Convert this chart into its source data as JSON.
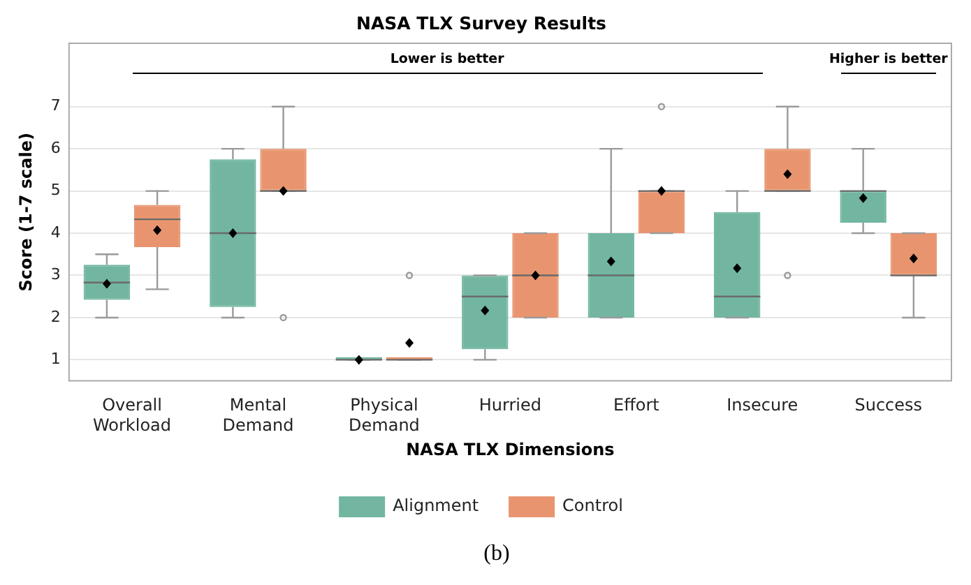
{
  "chart_data": {
    "type": "box",
    "title": "NASA TLX Survey Results",
    "xlabel": "NASA TLX Dimensions",
    "ylabel": "Score (1-7 scale)",
    "categories": [
      "Overall Workload",
      "Mental Demand",
      "Physical Demand",
      "Hurried",
      "Effort",
      "Insecure",
      "Success"
    ],
    "series": [
      {
        "name": "Alignment",
        "color": "#72b6a1",
        "boxes": [
          {
            "low": 2,
            "q1": 2.42,
            "median": 2.83,
            "q3": 3.25,
            "high": 3.5,
            "mean": 2.8
          },
          {
            "low": 2,
            "q1": 2.25,
            "median": 4,
            "q3": 5.75,
            "high": 6,
            "mean": 4
          },
          {
            "low": 1,
            "q1": 1,
            "median": 1,
            "q3": 1,
            "high": 1,
            "mean": 1
          },
          {
            "low": 1,
            "q1": 1.25,
            "median": 2.5,
            "q3": 3,
            "high": 3,
            "mean": 2.17
          },
          {
            "low": 2,
            "q1": 2,
            "median": 3,
            "q3": 4,
            "high": 6,
            "mean": 3.33
          },
          {
            "low": 2,
            "q1": 2,
            "median": 2.5,
            "q3": 4.5,
            "high": 5,
            "mean": 3.17
          },
          {
            "low": 4,
            "q1": 4.25,
            "median": 5,
            "q3": 5,
            "high": 6,
            "mean": 4.83
          }
        ]
      },
      {
        "name": "Control",
        "color": "#e8956f",
        "boxes": [
          {
            "low": 2.67,
            "q1": 3.67,
            "median": 4.33,
            "q3": 4.67,
            "high": 5,
            "mean": 4.07
          },
          {
            "low": 5,
            "q1": 5,
            "median": 5,
            "q3": 6,
            "high": 7,
            "mean": 5,
            "outliers": [
              2
            ]
          },
          {
            "low": 1,
            "q1": 1,
            "median": 1,
            "q3": 1,
            "high": 1,
            "mean": 1.4,
            "outliers": [
              3
            ]
          },
          {
            "low": 2,
            "q1": 2,
            "median": 3,
            "q3": 4,
            "high": 4,
            "mean": 3
          },
          {
            "low": 4,
            "q1": 4,
            "median": 5,
            "q3": 5,
            "high": 5,
            "mean": 5,
            "outliers": [
              7
            ]
          },
          {
            "low": 5,
            "q1": 5,
            "median": 5,
            "q3": 6,
            "high": 7,
            "mean": 5.4,
            "outliers": [
              3
            ]
          },
          {
            "low": 2,
            "q1": 3,
            "median": 3,
            "q3": 4,
            "high": 4,
            "mean": 3.4
          }
        ]
      }
    ],
    "ylim": [
      0.5,
      8.5
    ],
    "yticks": [
      1,
      2,
      3,
      4,
      5,
      6,
      7
    ],
    "grid": "y",
    "legend": "bottom",
    "annotations": [
      "Lower is better",
      "Higher is better",
      "(b)"
    ]
  }
}
